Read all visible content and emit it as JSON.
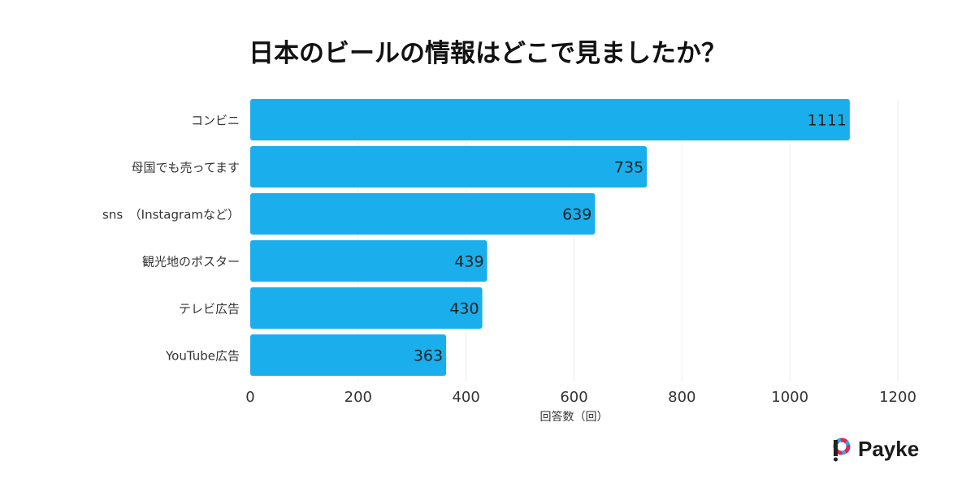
{
  "chart_data": {
    "type": "bar",
    "orientation": "horizontal",
    "title": "日本のビールの情報はどこで見ましたか？",
    "xlabel": "回答数（回）",
    "ylabel": "",
    "categories": [
      "コンビニ",
      "母国でも売ってます",
      "sns　（Instagramなど）",
      "観光地のポスター",
      "テレビ広告",
      "YouTube広告"
    ],
    "values": [
      1111,
      735,
      639,
      439,
      430,
      363
    ],
    "xlim": [
      0,
      1200
    ],
    "xticks": [
      0,
      200,
      400,
      600,
      800,
      1000,
      1200
    ],
    "grid": true,
    "data_labels": true,
    "bar_color": "#1AAFEC"
  },
  "logo": {
    "text": "Payke"
  }
}
